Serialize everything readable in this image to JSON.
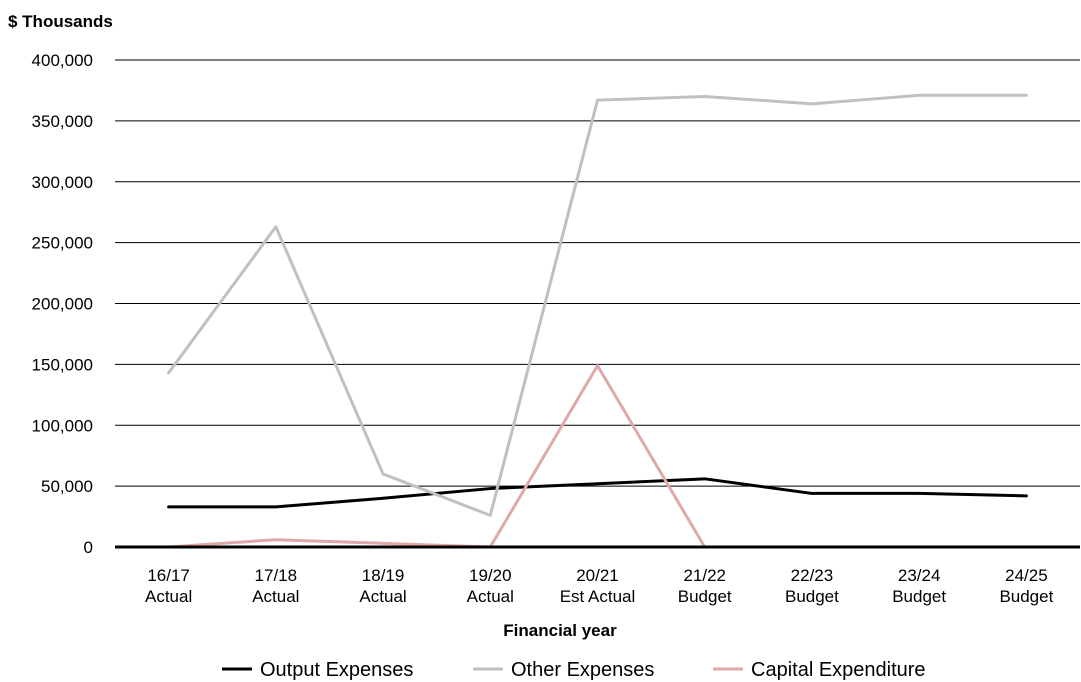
{
  "chart_data": {
    "type": "line",
    "ylabel": "$ Thousands",
    "xlabel": "Financial year",
    "ylim": [
      0,
      400000
    ],
    "yticks": [
      0,
      50000,
      100000,
      150000,
      200000,
      250000,
      300000,
      350000,
      400000
    ],
    "ytick_labels": [
      "0",
      "50,000",
      "100,000",
      "150,000",
      "200,000",
      "250,000",
      "300,000",
      "350,000",
      "400,000"
    ],
    "categories": [
      [
        "16/17",
        "Actual"
      ],
      [
        "17/18",
        "Actual"
      ],
      [
        "18/19",
        "Actual"
      ],
      [
        "19/20",
        "Actual"
      ],
      [
        "20/21",
        "Est Actual"
      ],
      [
        "21/22",
        "Budget"
      ],
      [
        "22/23",
        "Budget"
      ],
      [
        "23/24",
        "Budget"
      ],
      [
        "24/25",
        "Budget"
      ]
    ],
    "grid": true,
    "legend_position": "bottom",
    "series": [
      {
        "name": "Output Expenses",
        "color": "#000000",
        "values": [
          33000,
          33000,
          40000,
          48000,
          52000,
          56000,
          44000,
          44000,
          42000
        ]
      },
      {
        "name": "Other Expenses",
        "color": "#c0c0c0",
        "values": [
          143000,
          263000,
          60000,
          26000,
          367000,
          370000,
          364000,
          371000,
          371000
        ]
      },
      {
        "name": "Capital Expenditure",
        "color": "#e0a8a8",
        "values": [
          0,
          6000,
          3000,
          0,
          149000,
          0,
          0,
          0,
          0
        ]
      }
    ]
  }
}
